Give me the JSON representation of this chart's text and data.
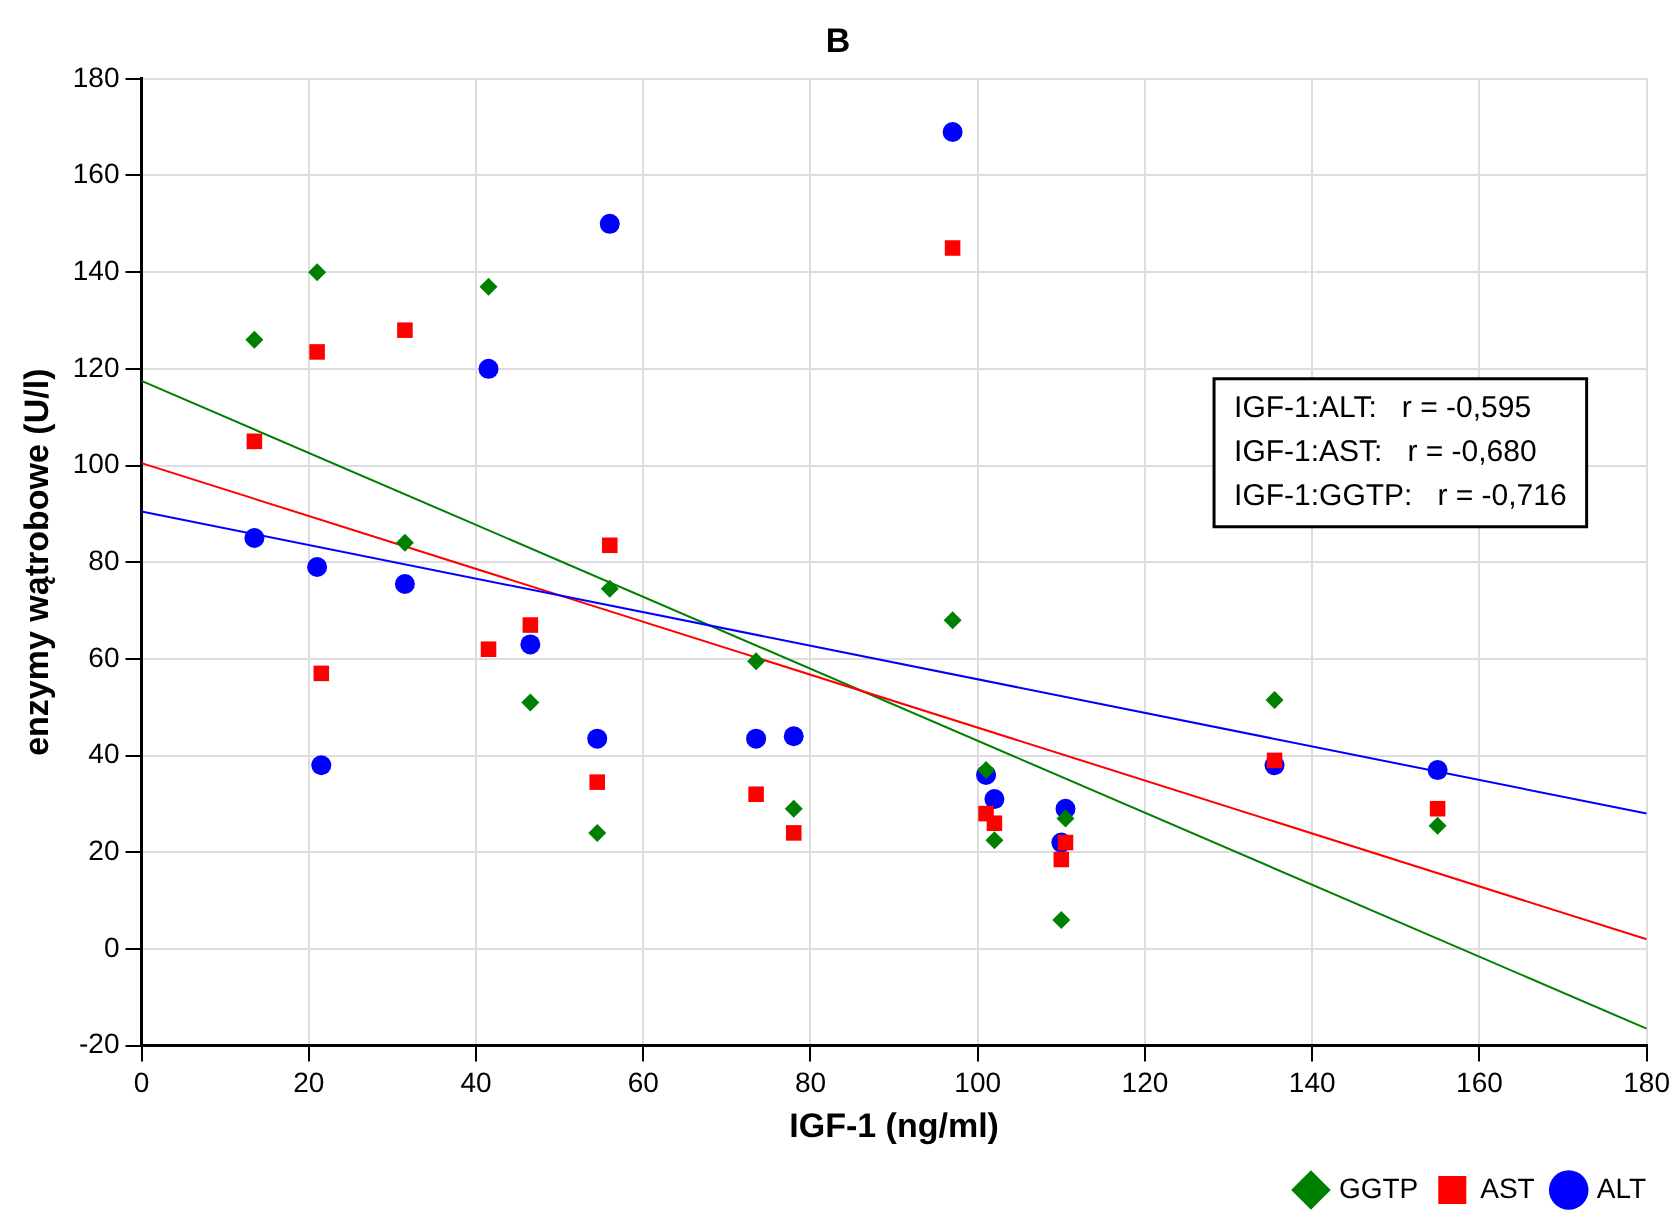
{
  "chart_data": {
    "type": "scatter",
    "title": "B",
    "xlabel": "IGF-1 (ng/ml)",
    "ylabel": "enzymy wątrobowe (U/l)",
    "xlim": [
      0,
      180
    ],
    "xticks": [
      0,
      20,
      40,
      60,
      80,
      100,
      120,
      140,
      160,
      180
    ],
    "ylim": [
      -20,
      180
    ],
    "yticks": [
      -20,
      0,
      20,
      40,
      60,
      80,
      100,
      120,
      140,
      160,
      180
    ],
    "grid": true,
    "legend": "bottom right",
    "annotations": [
      "IGF-1:ALT:   r = -0,595",
      "IGF-1:AST:   r = -0,680",
      "IGF-1:GGTP:   r = -0,716"
    ],
    "series": [
      {
        "name": "ALT",
        "color": "#0000ff",
        "marker": "circle",
        "x": [
          13.5,
          21,
          21.5,
          31.5,
          41.5,
          46.5,
          54.5,
          56,
          73.5,
          78,
          97,
          101,
          102,
          110,
          110.5,
          135.5,
          155
        ],
        "values": [
          85,
          79,
          38,
          75.5,
          120,
          63,
          43.5,
          150,
          43.5,
          44,
          169,
          36,
          31,
          22,
          29,
          38,
          37
        ]
      },
      {
        "name": "AST",
        "color": "#ff0000",
        "marker": "square",
        "x": [
          13.5,
          21,
          21.5,
          31.5,
          41.5,
          46.5,
          54.5,
          56,
          73.5,
          78,
          97,
          101,
          102,
          110,
          110.5,
          135.5,
          155
        ],
        "values": [
          105,
          123.5,
          57,
          128,
          62,
          67,
          34.5,
          83.5,
          32,
          24,
          145,
          28,
          26,
          18.5,
          22,
          39,
          29
        ]
      },
      {
        "name": "GGTP",
        "color": "#008000",
        "marker": "diamond",
        "x": [
          13.5,
          21,
          31.5,
          41.5,
          46.5,
          54.5,
          56,
          73.5,
          78,
          97,
          101,
          102,
          110,
          110.5,
          135.5,
          155
        ],
        "values": [
          126,
          140,
          84,
          137,
          51,
          24,
          74.5,
          59.5,
          29,
          68,
          37,
          22.5,
          6,
          27,
          51.5,
          25.5
        ]
      },
      {
        "type": "line",
        "color": "#0000ff",
        "marker": "none",
        "x": [
          0,
          180
        ],
        "values": [
          90.5,
          28
        ]
      },
      {
        "type": "line",
        "color": "#ff0000",
        "marker": "none",
        "x": [
          0,
          180
        ],
        "values": [
          100.5,
          2
        ]
      },
      {
        "type": "line",
        "color": "#008000",
        "marker": "none",
        "x": [
          0,
          180
        ],
        "values": [
          117.5,
          -16.5
        ]
      }
    ]
  }
}
